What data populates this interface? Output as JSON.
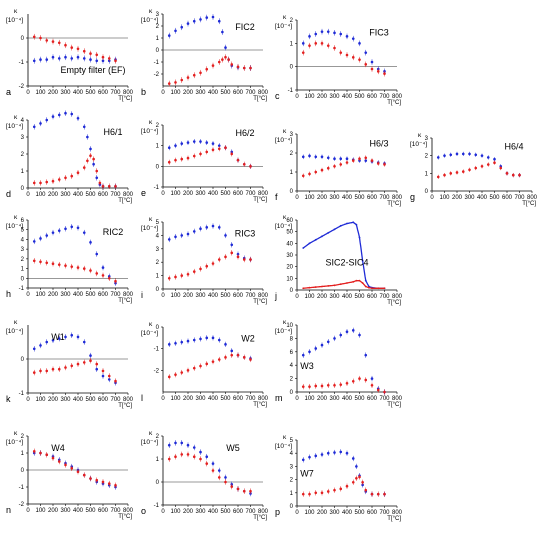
{
  "figure": {
    "x_unit_label": "T[°C]",
    "y_axis_symbol": "κ",
    "y_axis_multiplier": "[10⁻⁴]",
    "series_colors": {
      "blue": "#1f2bd6",
      "red": "#e32020"
    }
  },
  "chart_data": [
    {
      "id": "a",
      "letter": "a",
      "type": "scatter",
      "title": "Empty filter (EF)",
      "xlim": [
        0,
        800
      ],
      "ylim": [
        -2,
        1
      ],
      "yticks": [
        -2,
        -1,
        0
      ],
      "x": [
        50,
        100,
        150,
        200,
        250,
        300,
        350,
        400,
        450,
        500,
        550,
        600,
        650,
        700
      ],
      "series": [
        {
          "color": "blue",
          "values": [
            -0.95,
            -0.9,
            -0.9,
            -0.8,
            -0.85,
            -0.8,
            -0.85,
            -0.8,
            -0.85,
            -0.9,
            -0.95,
            -0.95,
            -0.95,
            -0.9
          ]
        },
        {
          "color": "red",
          "values": [
            0.05,
            0.0,
            -0.1,
            -0.15,
            -0.2,
            -0.3,
            -0.4,
            -0.45,
            -0.55,
            -0.65,
            -0.7,
            -0.8,
            -0.85,
            -0.95
          ]
        }
      ]
    },
    {
      "id": "b",
      "letter": "b",
      "type": "scatter",
      "title": "FIC2",
      "xlim": [
        0,
        800
      ],
      "ylim": [
        -3,
        3
      ],
      "yticks": [
        -2,
        -1,
        0,
        1,
        2,
        3
      ],
      "x": [
        50,
        100,
        150,
        200,
        250,
        300,
        350,
        400,
        450,
        475,
        500,
        525,
        550,
        600,
        650,
        700
      ],
      "series": [
        {
          "color": "blue",
          "values": [
            1.2,
            1.6,
            1.9,
            2.2,
            2.4,
            2.55,
            2.7,
            2.75,
            2.4,
            1.5,
            0.2,
            -0.8,
            -1.3,
            -1.45,
            -1.5,
            -1.5
          ]
        },
        {
          "color": "red",
          "values": [
            -2.8,
            -2.7,
            -2.5,
            -2.3,
            -2.1,
            -1.9,
            -1.6,
            -1.3,
            -1.0,
            -0.8,
            -0.6,
            -0.8,
            -1.2,
            -1.4,
            -1.5,
            -1.5
          ]
        }
      ]
    },
    {
      "id": "c",
      "letter": "c",
      "type": "scatter",
      "title": "FIC3",
      "xlim": [
        0,
        800
      ],
      "ylim": [
        -1,
        2
      ],
      "yticks": [
        -1,
        0,
        1,
        2
      ],
      "x": [
        50,
        100,
        150,
        200,
        250,
        300,
        350,
        400,
        450,
        500,
        550,
        600,
        650,
        700
      ],
      "series": [
        {
          "color": "blue",
          "values": [
            1.0,
            1.3,
            1.4,
            1.5,
            1.5,
            1.45,
            1.4,
            1.3,
            1.2,
            1.0,
            0.6,
            0.2,
            -0.1,
            -0.2
          ]
        },
        {
          "color": "red",
          "values": [
            0.6,
            0.9,
            1.0,
            1.0,
            0.9,
            0.8,
            0.6,
            0.5,
            0.4,
            0.3,
            0.1,
            -0.1,
            -0.2,
            -0.3
          ]
        }
      ]
    },
    {
      "id": "d",
      "letter": "d",
      "type": "scatter",
      "title": "H6/1",
      "xlim": [
        0,
        800
      ],
      "ylim": [
        0,
        4
      ],
      "yticks": [
        0,
        1,
        2,
        3,
        4
      ],
      "x": [
        50,
        100,
        150,
        200,
        250,
        300,
        350,
        400,
        450,
        475,
        500,
        525,
        550,
        575,
        600,
        650,
        700
      ],
      "series": [
        {
          "color": "blue",
          "values": [
            3.6,
            3.8,
            4.0,
            4.2,
            4.3,
            4.4,
            4.35,
            4.1,
            3.6,
            3.0,
            2.3,
            1.4,
            0.6,
            0.2,
            0.1,
            0.1,
            0.1
          ]
        },
        {
          "color": "red",
          "values": [
            0.3,
            0.3,
            0.35,
            0.4,
            0.5,
            0.6,
            0.7,
            0.9,
            1.2,
            1.6,
            1.9,
            1.7,
            1.0,
            0.3,
            0.1,
            0.1,
            0.1
          ]
        }
      ]
    },
    {
      "id": "e",
      "letter": "e",
      "type": "scatter",
      "title": "H6/2",
      "xlim": [
        0,
        800
      ],
      "ylim": [
        -1,
        2
      ],
      "yticks": [
        -1,
        0,
        1,
        2
      ],
      "x": [
        50,
        100,
        150,
        200,
        250,
        300,
        350,
        400,
        450,
        500,
        550,
        600,
        650,
        700
      ],
      "series": [
        {
          "color": "blue",
          "values": [
            0.9,
            1.0,
            1.1,
            1.15,
            1.2,
            1.2,
            1.15,
            1.1,
            1.0,
            0.9,
            0.7,
            0.3,
            0.1,
            0.0
          ]
        },
        {
          "color": "red",
          "values": [
            0.2,
            0.3,
            0.35,
            0.4,
            0.5,
            0.6,
            0.7,
            0.8,
            0.85,
            0.9,
            0.6,
            0.3,
            0.1,
            0.0
          ]
        }
      ]
    },
    {
      "id": "f",
      "letter": "f",
      "type": "scatter",
      "title": "H6/3",
      "xlim": [
        0,
        800
      ],
      "ylim": [
        0,
        3
      ],
      "yticks": [
        0,
        1,
        2,
        3
      ],
      "x": [
        50,
        100,
        150,
        200,
        250,
        300,
        350,
        400,
        450,
        500,
        550,
        600,
        650,
        700
      ],
      "series": [
        {
          "color": "blue",
          "values": [
            1.8,
            1.85,
            1.8,
            1.8,
            1.75,
            1.7,
            1.7,
            1.7,
            1.65,
            1.6,
            1.6,
            1.55,
            1.5,
            1.45
          ]
        },
        {
          "color": "red",
          "values": [
            0.8,
            0.9,
            1.0,
            1.1,
            1.2,
            1.3,
            1.4,
            1.5,
            1.6,
            1.7,
            1.75,
            1.6,
            1.45,
            1.4
          ]
        }
      ]
    },
    {
      "id": "g",
      "letter": "g",
      "type": "scatter",
      "title": "H6/4",
      "xlim": [
        0,
        800
      ],
      "ylim": [
        0,
        3
      ],
      "yticks": [
        0,
        1,
        2,
        3
      ],
      "x": [
        50,
        100,
        150,
        200,
        250,
        300,
        350,
        400,
        450,
        500,
        550,
        600,
        650,
        700
      ],
      "series": [
        {
          "color": "blue",
          "values": [
            1.9,
            2.0,
            2.05,
            2.1,
            2.1,
            2.1,
            2.05,
            2.0,
            1.9,
            1.8,
            1.4,
            1.0,
            0.9,
            0.9
          ]
        },
        {
          "color": "red",
          "values": [
            0.8,
            0.9,
            1.0,
            1.05,
            1.1,
            1.2,
            1.3,
            1.4,
            1.5,
            1.6,
            1.3,
            1.0,
            0.9,
            0.9
          ]
        }
      ]
    },
    {
      "id": "h",
      "letter": "h",
      "type": "scatter",
      "title": "RIC2",
      "xlim": [
        0,
        800
      ],
      "ylim": [
        -1,
        6
      ],
      "yticks": [
        -1,
        0,
        1,
        2,
        3,
        4,
        5,
        6
      ],
      "x": [
        50,
        100,
        150,
        200,
        250,
        300,
        350,
        400,
        450,
        500,
        550,
        600,
        650,
        700
      ],
      "series": [
        {
          "color": "blue",
          "values": [
            3.8,
            4.1,
            4.4,
            4.7,
            4.9,
            5.1,
            5.3,
            5.2,
            4.7,
            3.7,
            2.5,
            1.1,
            0.2,
            -0.5
          ]
        },
        {
          "color": "red",
          "values": [
            1.8,
            1.7,
            1.6,
            1.5,
            1.4,
            1.3,
            1.2,
            1.1,
            1.0,
            0.8,
            0.5,
            0.3,
            0.0,
            -0.3
          ]
        }
      ]
    },
    {
      "id": "i",
      "letter": "i",
      "type": "scatter",
      "title": "RIC3",
      "xlim": [
        0,
        800
      ],
      "ylim": [
        0,
        5
      ],
      "yticks": [
        0,
        1,
        2,
        3,
        4,
        5
      ],
      "x": [
        50,
        100,
        150,
        200,
        250,
        300,
        350,
        400,
        450,
        500,
        550,
        600,
        650,
        700
      ],
      "series": [
        {
          "color": "blue",
          "values": [
            3.7,
            3.9,
            4.0,
            4.1,
            4.3,
            4.5,
            4.6,
            4.7,
            4.6,
            4.0,
            3.3,
            2.6,
            2.3,
            2.2
          ]
        },
        {
          "color": "red",
          "values": [
            0.8,
            0.9,
            1.0,
            1.1,
            1.3,
            1.5,
            1.7,
            1.9,
            2.2,
            2.4,
            2.7,
            2.4,
            2.2,
            2.2
          ]
        }
      ]
    },
    {
      "id": "j",
      "letter": "j",
      "type": "line",
      "title": "SIC2-SIC4",
      "xlim": [
        0,
        800
      ],
      "ylim": [
        0,
        60
      ],
      "yticks": [
        0,
        10,
        20,
        30,
        40,
        50,
        60
      ],
      "x": [
        50,
        100,
        150,
        200,
        250,
        300,
        350,
        400,
        450,
        475,
        500,
        525,
        550,
        575,
        600,
        650,
        700
      ],
      "series": [
        {
          "color": "blue",
          "values": [
            36,
            40,
            43,
            46,
            49,
            52,
            55,
            57,
            58,
            56,
            45,
            25,
            8,
            3,
            2,
            1.5,
            1.5
          ]
        },
        {
          "color": "red",
          "values": [
            1.5,
            2,
            2.5,
            3,
            3.5,
            4,
            5,
            6,
            7,
            8,
            8,
            6,
            3,
            2,
            1.5,
            1.5,
            1.5
          ]
        }
      ]
    },
    {
      "id": "k",
      "letter": "k",
      "type": "scatter",
      "title": "W1",
      "xlim": [
        0,
        800
      ],
      "ylim": [
        -1,
        1
      ],
      "yticks": [
        -1,
        0
      ],
      "x": [
        50,
        100,
        150,
        200,
        250,
        300,
        350,
        400,
        450,
        500,
        550,
        600,
        650,
        700
      ],
      "series": [
        {
          "color": "blue",
          "values": [
            0.3,
            0.4,
            0.5,
            0.55,
            0.6,
            0.65,
            0.7,
            0.65,
            0.5,
            0.1,
            -0.3,
            -0.5,
            -0.6,
            -0.7
          ]
        },
        {
          "color": "red",
          "values": [
            -0.4,
            -0.35,
            -0.35,
            -0.3,
            -0.3,
            -0.25,
            -0.2,
            -0.15,
            -0.1,
            -0.05,
            -0.15,
            -0.35,
            -0.5,
            -0.65
          ]
        }
      ]
    },
    {
      "id": "l",
      "letter": "l",
      "type": "scatter",
      "title": "W2",
      "xlim": [
        0,
        800
      ],
      "ylim": [
        -3,
        0
      ],
      "yticks": [
        -2,
        -1,
        0
      ],
      "x": [
        50,
        100,
        150,
        200,
        250,
        300,
        350,
        400,
        450,
        500,
        550,
        600,
        650,
        700
      ],
      "series": [
        {
          "color": "blue",
          "values": [
            -0.8,
            -0.75,
            -0.7,
            -0.65,
            -0.6,
            -0.55,
            -0.5,
            -0.5,
            -0.6,
            -0.8,
            -1.1,
            -1.3,
            -1.4,
            -1.45
          ]
        },
        {
          "color": "red",
          "values": [
            -2.3,
            -2.2,
            -2.1,
            -2.0,
            -1.9,
            -1.8,
            -1.7,
            -1.6,
            -1.5,
            -1.4,
            -1.3,
            -1.3,
            -1.4,
            -1.5
          ]
        }
      ]
    },
    {
      "id": "m",
      "letter": "m",
      "type": "scatter",
      "title": "W3",
      "xlim": [
        0,
        800
      ],
      "ylim": [
        0,
        10
      ],
      "yticks": [
        0,
        2,
        4,
        6,
        8,
        10
      ],
      "x": [
        50,
        100,
        150,
        200,
        250,
        300,
        350,
        400,
        450,
        500,
        550,
        600,
        650,
        700
      ],
      "series": [
        {
          "color": "blue",
          "values": [
            5.5,
            6.0,
            6.5,
            7.0,
            7.5,
            8.0,
            8.5,
            9.0,
            9.2,
            8.5,
            5.5,
            2.0,
            0.5,
            0.0
          ]
        },
        {
          "color": "red",
          "values": [
            0.8,
            0.8,
            0.9,
            0.9,
            1.0,
            1.0,
            1.1,
            1.3,
            1.6,
            2.0,
            1.8,
            1.0,
            0.3,
            0.0
          ]
        }
      ]
    },
    {
      "id": "n",
      "letter": "n",
      "type": "scatter",
      "title": "W4",
      "xlim": [
        0,
        800
      ],
      "ylim": [
        -2,
        2
      ],
      "yticks": [
        -2,
        -1,
        0,
        1,
        2
      ],
      "x": [
        50,
        100,
        150,
        200,
        250,
        300,
        350,
        400,
        450,
        500,
        550,
        600,
        650,
        700
      ],
      "series": [
        {
          "color": "blue",
          "values": [
            1.0,
            1.0,
            0.9,
            0.8,
            0.6,
            0.4,
            0.2,
            0.0,
            -0.3,
            -0.5,
            -0.7,
            -0.8,
            -0.9,
            -1.0
          ]
        },
        {
          "color": "red",
          "values": [
            1.1,
            1.0,
            0.9,
            0.7,
            0.5,
            0.3,
            0.1,
            -0.1,
            -0.3,
            -0.5,
            -0.6,
            -0.7,
            -0.8,
            -0.9
          ]
        }
      ]
    },
    {
      "id": "o",
      "letter": "o",
      "type": "scatter",
      "title": "W5",
      "xlim": [
        0,
        800
      ],
      "ylim": [
        -1,
        2
      ],
      "yticks": [
        -1,
        0,
        1,
        2
      ],
      "x": [
        50,
        100,
        150,
        200,
        250,
        300,
        350,
        400,
        450,
        500,
        550,
        600,
        650,
        700
      ],
      "series": [
        {
          "color": "blue",
          "values": [
            1.6,
            1.7,
            1.7,
            1.6,
            1.5,
            1.3,
            1.1,
            0.8,
            0.5,
            0.2,
            -0.1,
            -0.3,
            -0.4,
            -0.5
          ]
        },
        {
          "color": "red",
          "values": [
            1.0,
            1.1,
            1.2,
            1.2,
            1.1,
            1.0,
            0.8,
            0.5,
            0.2,
            0.0,
            -0.2,
            -0.3,
            -0.4,
            -0.4
          ]
        }
      ]
    },
    {
      "id": "p",
      "letter": "p",
      "type": "scatter",
      "title": "W7",
      "xlim": [
        0,
        800
      ],
      "ylim": [
        0,
        5
      ],
      "yticks": [
        0,
        1,
        2,
        3,
        4,
        5
      ],
      "x": [
        50,
        100,
        150,
        200,
        250,
        300,
        350,
        400,
        450,
        475,
        500,
        525,
        550,
        600,
        650,
        700
      ],
      "series": [
        {
          "color": "blue",
          "values": [
            3.5,
            3.7,
            3.8,
            3.9,
            4.0,
            4.05,
            4.1,
            4.0,
            3.6,
            3.0,
            2.3,
            1.6,
            1.1,
            0.9,
            0.9,
            0.9
          ]
        },
        {
          "color": "red",
          "values": [
            0.9,
            0.9,
            1.0,
            1.0,
            1.1,
            1.2,
            1.3,
            1.5,
            1.8,
            2.1,
            2.2,
            1.8,
            1.2,
            0.9,
            0.9,
            0.9
          ]
        }
      ]
    }
  ]
}
